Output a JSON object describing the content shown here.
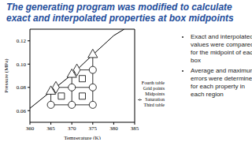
{
  "title": "The generating program was modified to calculate exact and interpolated properties at box midpoints",
  "bullets": [
    "Exact and interpolated values were compared for the midpoint of each box",
    "Average and maximum errors were determined for each property in each region"
  ],
  "chart_data": {
    "type": "scatter",
    "xlabel": "Temperature (K)",
    "ylabel": "Pressure (MPa)",
    "xlim": [
      360,
      385
    ],
    "xticks": [
      360,
      365,
      370,
      375,
      380,
      385
    ],
    "ylim": [
      0.05,
      0.13
    ],
    "yticks": [
      0.06,
      0.08,
      {
        "value": 0.1,
        "label": "0.10"
      },
      0.12
    ],
    "legend": "lower right",
    "series": [
      {
        "name": "Saturation",
        "type": "line",
        "line_style": "solid",
        "color": "#000000",
        "x": [
          360,
          365,
          370,
          375,
          380,
          382.5
        ],
        "values": [
          0.062,
          0.0765,
          0.091,
          0.108,
          0.1245,
          0.13
        ]
      },
      {
        "name": "Grid points",
        "type": "scatter",
        "marker": "circle",
        "color": "#000000",
        "x": [
          365,
          370,
          375,
          370,
          375,
          375
        ],
        "values": [
          0.065,
          0.065,
          0.065,
          0.08,
          0.08,
          0.095
        ]
      },
      {
        "name": "Midpoints",
        "type": "scatter",
        "marker": "square",
        "color": "#000000",
        "x": [
          367.5,
          372.5,
          372.5
        ],
        "values": [
          0.0725,
          0.0725,
          0.0875
        ]
      },
      {
        "name": "Third table",
        "type": "scatter",
        "marker": "triangle",
        "color": "#000000",
        "x": [
          365,
          370,
          375
        ],
        "values": [
          0.0765,
          0.091,
          0.108
        ]
      },
      {
        "name": "Fourth table",
        "type": "scatter",
        "marker": "diamond",
        "color": "#000000",
        "x": [
          366.2,
          371.2
        ],
        "values": [
          0.08,
          0.095
        ]
      }
    ]
  }
}
